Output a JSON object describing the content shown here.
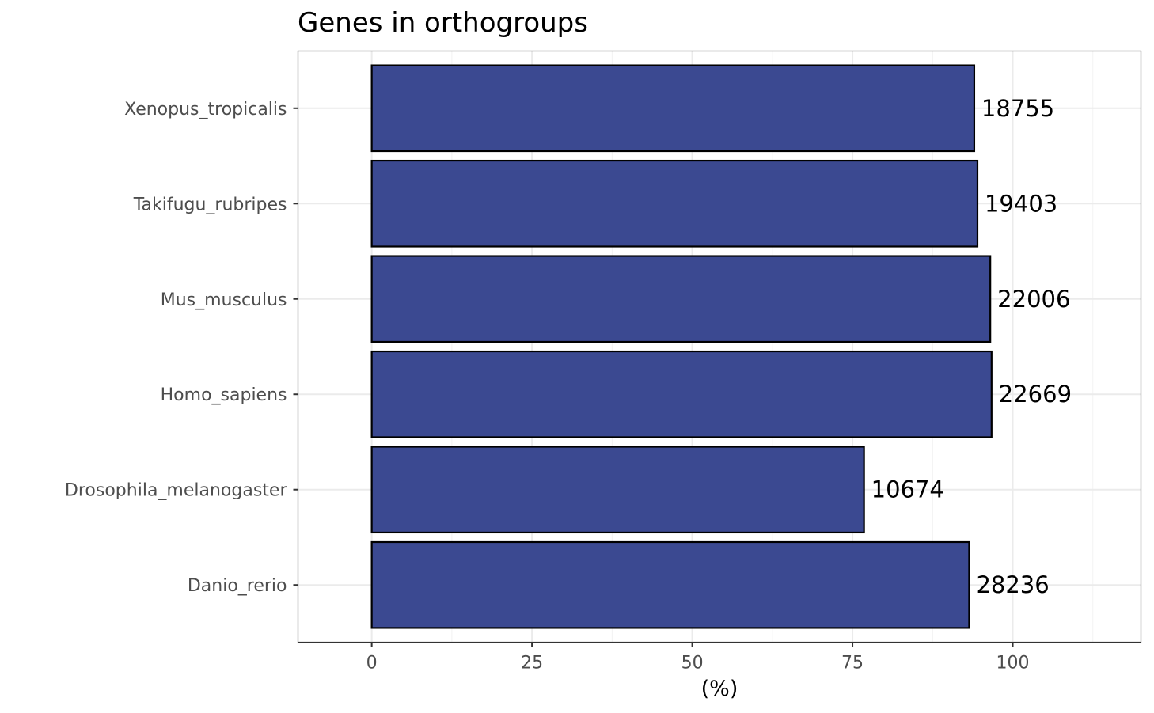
{
  "chart_data": {
    "type": "bar",
    "orientation": "horizontal",
    "title": "Genes in orthogroups",
    "xlabel": "(%)",
    "ylabel": "",
    "xlim": [
      -11.5,
      120
    ],
    "xticks": [
      0,
      25,
      50,
      75,
      100
    ],
    "minor_xticks": [
      12.5,
      37.5,
      62.5,
      87.5,
      112.5
    ],
    "grid": true,
    "legend": "none",
    "categories": [
      "Danio_rerio",
      "Drosophila_melanogaster",
      "Homo_sapiens",
      "Mus_musculus",
      "Takifugu_rubripes",
      "Xenopus_tropicalis"
    ],
    "values": [
      93.2,
      76.8,
      96.7,
      96.5,
      94.5,
      94.0
    ],
    "data_labels": [
      "28236",
      "10674",
      "22669",
      "22006",
      "19403",
      "18755"
    ],
    "bar_color": "#3b4991",
    "bar_edge_color": "#000000"
  }
}
